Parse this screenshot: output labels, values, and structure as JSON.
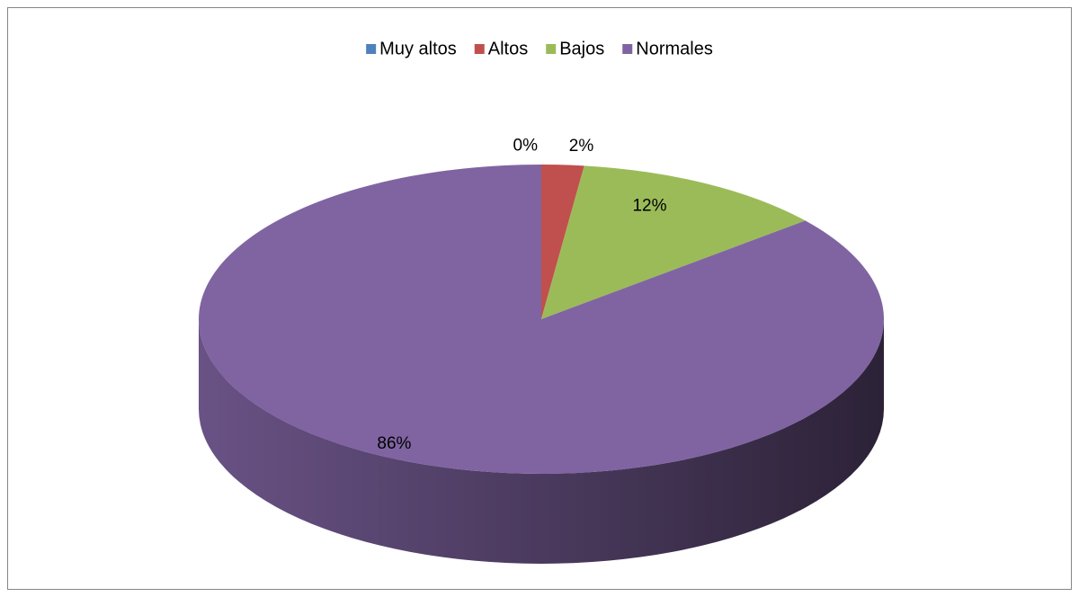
{
  "chart_data": {
    "type": "pie3d",
    "categories": [
      "Muy altos",
      "Altos",
      "Bajos",
      "Normales"
    ],
    "values": [
      0,
      2,
      12,
      86
    ],
    "value_labels": [
      "0%",
      "2%",
      "12%",
      "86%"
    ],
    "colors": [
      "#4f81bd",
      "#c0504d",
      "#9bbb59",
      "#8064a2"
    ],
    "legend": "top"
  }
}
